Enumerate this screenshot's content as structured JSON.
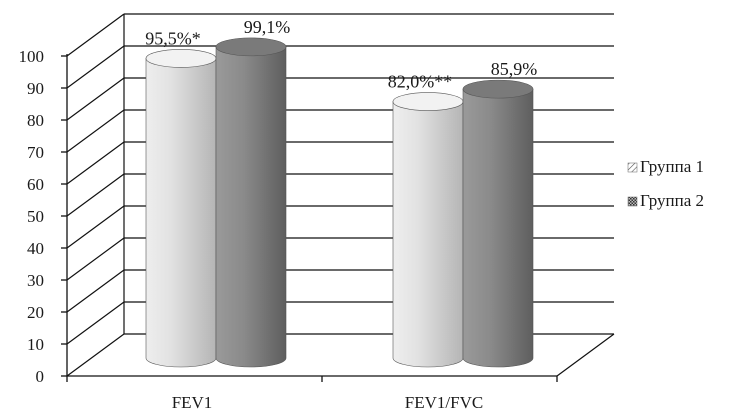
{
  "chart_data": {
    "type": "bar",
    "style": "3d-cylinder",
    "categories": [
      "FEV1",
      "FEV1/FVC"
    ],
    "series": [
      {
        "name": "Группа 1",
        "values": [
          95.5,
          82.0
        ],
        "labels": [
          "95,5%*",
          "82,0%**"
        ],
        "color": "#d8d8d8"
      },
      {
        "name": "Группа 2",
        "values": [
          99.1,
          85.9
        ],
        "labels": [
          "99,1%",
          "85,9%"
        ],
        "color": "#8a8a8a"
      }
    ],
    "ylim": [
      0,
      100
    ],
    "yticks": [
      "0",
      "10",
      "20",
      "30",
      "40",
      "50",
      "60",
      "70",
      "80",
      "90",
      "100"
    ],
    "grid": true,
    "legend_position": "right"
  }
}
